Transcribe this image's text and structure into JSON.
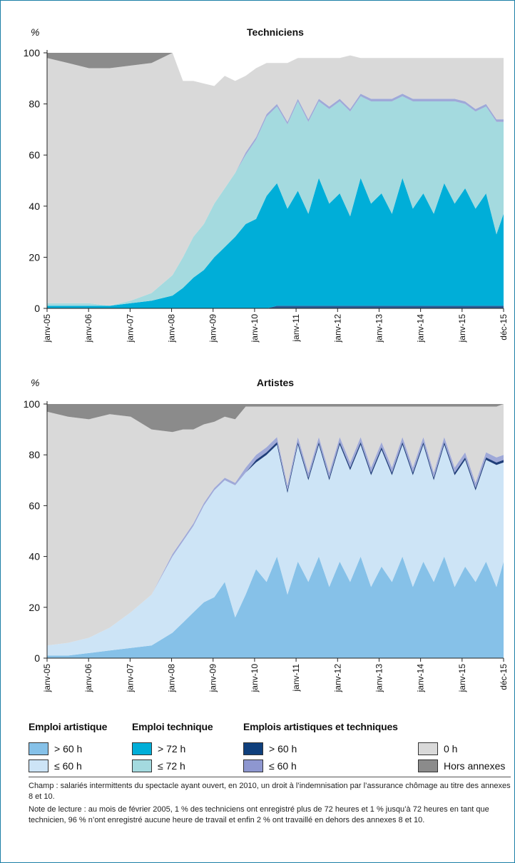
{
  "chart_data": [
    {
      "type": "area",
      "stacked": true,
      "title": "Techniciens",
      "ylabel": "%",
      "ylim": [
        0,
        100
      ],
      "yticks": [
        0,
        20,
        40,
        60,
        80,
        100
      ],
      "x_tick_labels": [
        "janv-05",
        "janv-06",
        "janv-07",
        "janv-08",
        "janv-09",
        "janv-10",
        "janv-11",
        "janv-12",
        "janv-13",
        "janv-14",
        "janv-15",
        "déc-15"
      ],
      "x": [
        2005.0,
        2005.5,
        2006.0,
        2006.5,
        2007.0,
        2007.5,
        2008.0,
        2008.25,
        2008.5,
        2008.75,
        2009.0,
        2009.25,
        2009.5,
        2009.75,
        2010.0,
        2010.25,
        2010.5,
        2010.75,
        2011.0,
        2011.25,
        2011.5,
        2011.75,
        2012.0,
        2012.25,
        2012.5,
        2012.75,
        2013.0,
        2013.25,
        2013.5,
        2013.75,
        2014.0,
        2014.25,
        2014.5,
        2014.75,
        2015.0,
        2015.25,
        2015.5,
        2015.75,
        2015.92
      ],
      "series": [
        {
          "name": "Emplois artistiques et techniques ≤ 60 h",
          "color": "#2a5b95",
          "values": [
            0,
            0,
            0,
            0,
            0,
            0,
            0,
            0,
            0,
            0,
            0,
            0,
            0,
            0,
            0,
            0,
            1,
            1,
            1,
            1,
            1,
            1,
            1,
            1,
            1,
            1,
            1,
            1,
            1,
            1,
            1,
            1,
            1,
            1,
            1,
            1,
            1,
            1,
            1
          ]
        },
        {
          "name": "Emploi technique > 72 h",
          "color": "#00aed8",
          "values": [
            1,
            1,
            1,
            1,
            2,
            3,
            5,
            8,
            12,
            15,
            20,
            24,
            28,
            33,
            35,
            44,
            48,
            38,
            45,
            36,
            50,
            40,
            44,
            35,
            50,
            40,
            44,
            36,
            50,
            38,
            44,
            36,
            48,
            40,
            46,
            38,
            44,
            28,
            36
          ]
        },
        {
          "name": "Emploi technique ≤ 72 h",
          "color": "#a4dadf",
          "values": [
            1,
            1,
            1,
            0,
            1,
            3,
            8,
            12,
            16,
            18,
            21,
            23,
            25,
            27,
            31,
            31,
            30,
            33,
            35,
            36,
            30,
            37,
            36,
            41,
            32,
            40,
            36,
            44,
            32,
            42,
            36,
            44,
            32,
            40,
            33,
            38,
            34,
            44,
            36
          ]
        },
        {
          "name": "Emplois artistiques et techniques > 60 h",
          "color": "#9fa9d8",
          "values": [
            0,
            0,
            0,
            0,
            0,
            0,
            0,
            0,
            0,
            0,
            0,
            0,
            0,
            1,
            1,
            1,
            1,
            1,
            1,
            1,
            1,
            1,
            1,
            1,
            1,
            1,
            1,
            1,
            1,
            1,
            1,
            1,
            1,
            1,
            1,
            1,
            1,
            1,
            1
          ]
        },
        {
          "name": "0 h",
          "color": "#d9d9d9",
          "values": [
            96,
            94,
            92,
            93,
            92,
            90,
            88,
            69,
            61,
            55,
            46,
            44,
            36,
            30,
            27,
            20,
            16,
            23,
            16,
            24,
            16,
            19,
            16,
            21,
            14,
            16,
            16,
            16,
            14,
            16,
            16,
            16,
            16,
            16,
            17,
            20,
            18,
            24,
            24
          ]
        },
        {
          "name": "Hors annexes",
          "color": "#8b8b8b",
          "values": [
            2,
            4,
            6,
            6,
            5,
            4,
            0,
            0,
            0,
            0,
            0,
            0,
            0,
            0,
            0,
            0,
            0,
            0,
            0,
            0,
            0,
            0,
            0,
            0,
            0,
            0,
            0,
            0,
            0,
            0,
            0,
            0,
            0,
            0,
            0,
            0,
            0,
            0,
            0
          ]
        }
      ]
    },
    {
      "type": "area",
      "stacked": true,
      "title": "Artistes",
      "ylabel": "%",
      "ylim": [
        0,
        100
      ],
      "yticks": [
        0,
        20,
        40,
        60,
        80,
        100
      ],
      "x_tick_labels": [
        "janv-05",
        "janv-06",
        "janv-07",
        "janv-08",
        "janv-09",
        "janv-10",
        "janv-11",
        "janv-12",
        "janv-13",
        "janv-14",
        "janv-15",
        "déc-15"
      ],
      "x": [
        2005.0,
        2005.5,
        2006.0,
        2006.5,
        2007.0,
        2007.5,
        2008.0,
        2008.25,
        2008.5,
        2008.75,
        2009.0,
        2009.25,
        2009.5,
        2009.75,
        2010.0,
        2010.25,
        2010.5,
        2010.75,
        2011.0,
        2011.25,
        2011.5,
        2011.75,
        2012.0,
        2012.25,
        2012.5,
        2012.75,
        2013.0,
        2013.25,
        2013.5,
        2013.75,
        2014.0,
        2014.25,
        2014.5,
        2014.75,
        2015.0,
        2015.25,
        2015.5,
        2015.75,
        2015.92
      ],
      "series": [
        {
          "name": "Emploi artistique > 60 h",
          "color": "#86c1e8",
          "values": [
            1,
            1,
            2,
            3,
            4,
            5,
            10,
            14,
            18,
            22,
            24,
            30,
            16,
            25,
            35,
            30,
            40,
            25,
            38,
            30,
            40,
            28,
            38,
            30,
            40,
            28,
            36,
            30,
            40,
            28,
            38,
            30,
            40,
            28,
            36,
            30,
            38,
            28,
            38
          ]
        },
        {
          "name": "Emploi artistique ≤ 60 h",
          "color": "#cde4f6",
          "values": [
            4,
            5,
            6,
            9,
            14,
            20,
            30,
            32,
            34,
            38,
            42,
            40,
            52,
            48,
            42,
            50,
            44,
            40,
            46,
            40,
            44,
            42,
            46,
            44,
            44,
            44,
            46,
            42,
            44,
            44,
            46,
            40,
            44,
            44,
            42,
            36,
            40,
            48,
            39
          ]
        },
        {
          "name": "Emploi technique > 72 h",
          "color": "#00aed8",
          "values": [
            0,
            0,
            0,
            0,
            0,
            0,
            0,
            0,
            0,
            0,
            0,
            0,
            0,
            0,
            0,
            0,
            0,
            0,
            0,
            0,
            0,
            0,
            0,
            0,
            0,
            0,
            0,
            0,
            0,
            0,
            0,
            0,
            0,
            0,
            0,
            0,
            0,
            0,
            0
          ]
        },
        {
          "name": "Emploi technique ≤ 72 h",
          "color": "#a4dadf",
          "values": [
            0,
            0,
            0,
            0,
            0,
            0,
            0,
            0,
            0,
            0,
            0,
            0,
            0,
            0,
            0,
            0,
            0,
            0,
            0,
            0,
            0,
            0,
            0,
            0,
            0,
            0,
            0,
            0,
            0,
            0,
            0,
            0,
            0,
            0,
            0,
            0,
            0,
            0,
            0
          ]
        },
        {
          "name": "Emplois artistiques et techniques > 60 h",
          "color": "#1f3e7a",
          "values": [
            0,
            0,
            0,
            0,
            0,
            0,
            0,
            0,
            0,
            0,
            0,
            0,
            0,
            0,
            1,
            1,
            1,
            1,
            1,
            1,
            1,
            1,
            1,
            1,
            1,
            1,
            1,
            1,
            1,
            1,
            1,
            1,
            1,
            1,
            1,
            1,
            1,
            1,
            1
          ]
        },
        {
          "name": "Emplois artistiques et techniques ≤ 60 h",
          "color": "#9fa9d8",
          "values": [
            0,
            0,
            0,
            0,
            0,
            0,
            1,
            1,
            1,
            1,
            1,
            1,
            1,
            2,
            2,
            2,
            2,
            2,
            2,
            2,
            2,
            2,
            2,
            2,
            2,
            2,
            2,
            2,
            2,
            2,
            2,
            2,
            2,
            2,
            2,
            2,
            2,
            2,
            2
          ]
        },
        {
          "name": "0 h",
          "color": "#d9d9d9",
          "values": [
            92,
            89,
            86,
            84,
            77,
            65,
            48,
            43,
            37,
            31,
            26,
            24,
            25,
            24,
            19,
            16,
            12,
            31,
            12,
            26,
            12,
            26,
            12,
            22,
            12,
            24,
            14,
            24,
            12,
            24,
            12,
            26,
            12,
            24,
            18,
            30,
            18,
            20,
            20
          ]
        },
        {
          "name": "Hors annexes",
          "color": "#8b8b8b",
          "values": [
            3,
            5,
            6,
            4,
            5,
            10,
            11,
            10,
            10,
            8,
            7,
            5,
            6,
            1,
            1,
            1,
            1,
            1,
            1,
            1,
            1,
            1,
            1,
            1,
            1,
            1,
            1,
            1,
            1,
            1,
            1,
            1,
            1,
            1,
            1,
            1,
            1,
            1,
            0
          ]
        }
      ]
    }
  ],
  "legend": {
    "groups": [
      {
        "title": "Emploi artistique",
        "items": [
          {
            "label": "> 60 h",
            "color": "#86c1e8"
          },
          {
            "label": "≤ 60 h",
            "color": "#cde4f6"
          }
        ]
      },
      {
        "title": "Emploi technique",
        "items": [
          {
            "label": "> 72 h",
            "color": "#00aed8"
          },
          {
            "label": "≤ 72 h",
            "color": "#a4dadf"
          }
        ]
      },
      {
        "title": "Emplois artistiques et techniques",
        "items": [
          {
            "label": "> 60 h",
            "color": "#0f3f7c"
          },
          {
            "label": "≤ 60 h",
            "color": "#8e97d0"
          }
        ]
      },
      {
        "title": "",
        "items": [
          {
            "label": "0 h",
            "color": "#d9d9d9"
          },
          {
            "label": "Hors annexes",
            "color": "#8b8b8b"
          }
        ]
      }
    ]
  },
  "notes": {
    "champ": "Champ : salariés intermittents du spectacle ayant ouvert, en 2010, un droit à l’indemnisation par l’assurance chômage au titre des annexes 8 et 10.",
    "lecture": "Note de lecture : au mois de février 2005, 1 % des techniciens ont enregistré plus de 72 heures et 1 % jusqu’à 72 heures en tant que technicien, 96 % n’ont enregistré aucune heure de travail et enfin 2 % ont travaillé en dehors des annexes 8 et 10."
  }
}
